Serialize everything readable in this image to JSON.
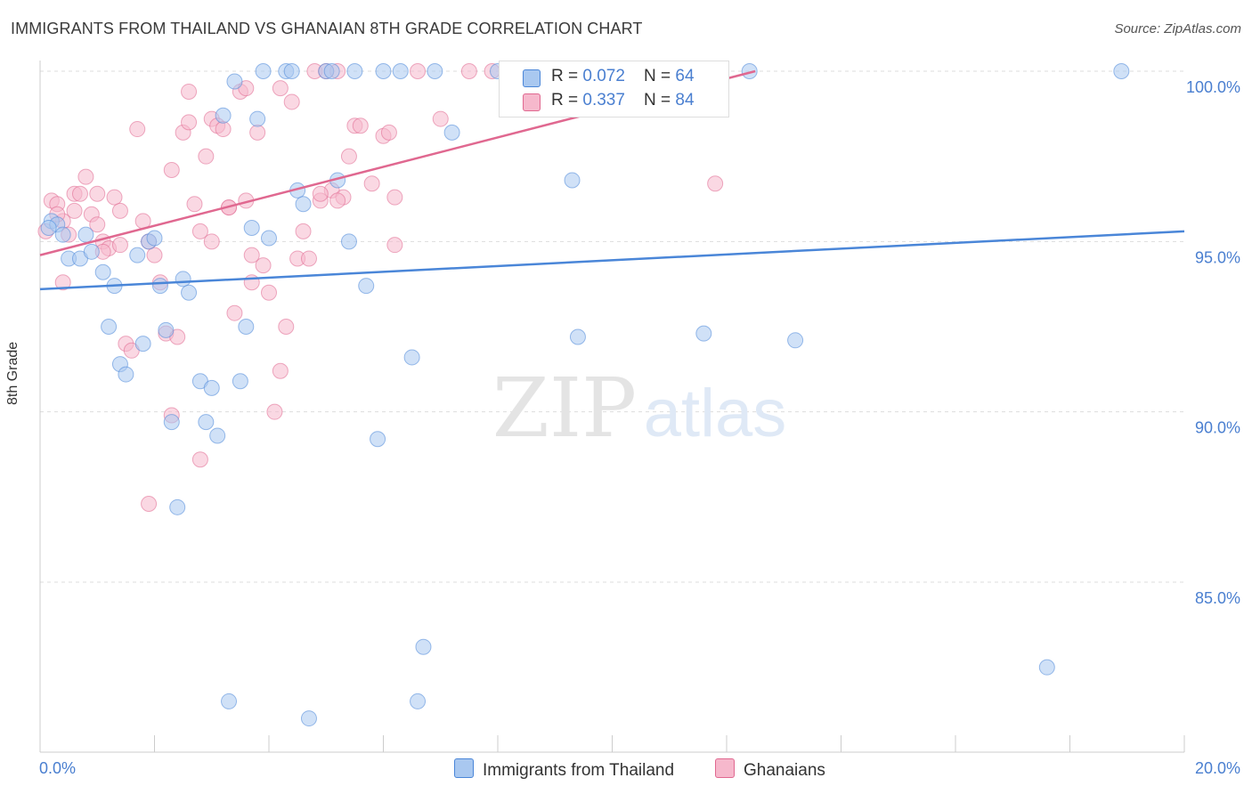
{
  "title": "IMMIGRANTS FROM THAILAND VS GHANAIAN 8TH GRADE CORRELATION CHART",
  "source": "Source: ZipAtlas.com",
  "watermark": {
    "zip": "ZIP",
    "atlas": "atlas"
  },
  "legend": {
    "rows": [
      {
        "r_label": "R = ",
        "r_value": "0.072",
        "n_label": "N = ",
        "n_value": "64",
        "color": "#a9c8f0"
      },
      {
        "r_label": "R = ",
        "r_value": "0.337",
        "n_label": "N = ",
        "n_value": "84",
        "color": "#f6b8cc"
      }
    ]
  },
  "bottom_legend": [
    {
      "label": "Immigrants from Thailand",
      "color": "#a9c8f0"
    },
    {
      "label": "Ghanaians",
      "color": "#f6b8cc"
    }
  ],
  "chart_data": {
    "type": "scatter",
    "title": "IMMIGRANTS FROM THAILAND VS GHANAIAN 8TH GRADE CORRELATION CHART",
    "xlabel": "",
    "ylabel": "8th Grade",
    "xlim": [
      0,
      20
    ],
    "ylim": [
      80.5,
      100.5
    ],
    "x_tick_labels": [
      "0.0%",
      "20.0%"
    ],
    "y_ticks": [
      100,
      95,
      90,
      85
    ],
    "y_tick_labels": [
      "100.0%",
      "95.0%",
      "90.0%",
      "85.0%"
    ],
    "grid": true,
    "legend_position": "top-center",
    "series": [
      {
        "name": "Immigrants from Thailand",
        "color": "#4a86d8",
        "fill": "#a9c8f0",
        "trend": {
          "x": [
            0,
            20
          ],
          "y": [
            93.6,
            95.3
          ]
        },
        "points": [
          [
            0.2,
            95.6
          ],
          [
            0.3,
            95.5
          ],
          [
            0.4,
            95.2
          ],
          [
            0.5,
            94.5
          ],
          [
            0.7,
            94.5
          ],
          [
            0.8,
            95.2
          ],
          [
            0.9,
            94.7
          ],
          [
            1.1,
            94.1
          ],
          [
            1.3,
            93.7
          ],
          [
            1.2,
            92.5
          ],
          [
            1.4,
            91.4
          ],
          [
            1.5,
            91.1
          ],
          [
            1.7,
            94.6
          ],
          [
            1.8,
            92.0
          ],
          [
            1.9,
            95.0
          ],
          [
            2.0,
            95.1
          ],
          [
            2.1,
            93.7
          ],
          [
            2.2,
            92.4
          ],
          [
            2.3,
            89.7
          ],
          [
            2.4,
            87.2
          ],
          [
            2.5,
            93.9
          ],
          [
            2.6,
            93.5
          ],
          [
            2.8,
            90.9
          ],
          [
            2.9,
            89.7
          ],
          [
            3.0,
            90.7
          ],
          [
            3.1,
            89.3
          ],
          [
            3.2,
            98.7
          ],
          [
            3.3,
            81.5
          ],
          [
            3.4,
            99.7
          ],
          [
            3.5,
            90.9
          ],
          [
            3.6,
            92.5
          ],
          [
            3.7,
            95.4
          ],
          [
            3.8,
            98.6
          ],
          [
            3.9,
            100.0
          ],
          [
            4.0,
            95.1
          ],
          [
            4.3,
            100.0
          ],
          [
            4.4,
            100.0
          ],
          [
            4.5,
            96.5
          ],
          [
            4.6,
            96.1
          ],
          [
            4.7,
            81.0
          ],
          [
            5.0,
            100.0
          ],
          [
            5.1,
            100.0
          ],
          [
            5.2,
            96.8
          ],
          [
            5.4,
            95.0
          ],
          [
            5.5,
            100.0
          ],
          [
            5.7,
            93.7
          ],
          [
            5.9,
            89.2
          ],
          [
            6.0,
            100.0
          ],
          [
            6.3,
            100.0
          ],
          [
            6.5,
            91.6
          ],
          [
            6.6,
            81.5
          ],
          [
            6.7,
            83.1
          ],
          [
            6.9,
            100.0
          ],
          [
            7.2,
            98.2
          ],
          [
            8.0,
            100.0
          ],
          [
            9.3,
            96.8
          ],
          [
            9.4,
            92.2
          ],
          [
            11.2,
            100.0
          ],
          [
            11.6,
            92.3
          ],
          [
            12.4,
            100.0
          ],
          [
            13.2,
            92.1
          ],
          [
            17.6,
            82.5
          ],
          [
            18.9,
            100.0
          ],
          [
            0.15,
            95.4
          ]
        ]
      },
      {
        "name": "Ghanaians",
        "color": "#e06890",
        "fill": "#f6b8cc",
        "trend": {
          "x": [
            0,
            12.5
          ],
          "y": [
            94.6,
            100.0
          ]
        },
        "points": [
          [
            0.1,
            95.3
          ],
          [
            0.2,
            96.2
          ],
          [
            0.3,
            96.1
          ],
          [
            0.4,
            95.6
          ],
          [
            0.4,
            93.8
          ],
          [
            0.5,
            95.2
          ],
          [
            0.6,
            96.4
          ],
          [
            0.7,
            96.4
          ],
          [
            0.8,
            96.9
          ],
          [
            0.9,
            95.8
          ],
          [
            1.0,
            96.4
          ],
          [
            1.1,
            95.0
          ],
          [
            1.2,
            94.8
          ],
          [
            1.3,
            96.3
          ],
          [
            1.4,
            94.9
          ],
          [
            1.5,
            92.0
          ],
          [
            1.6,
            91.8
          ],
          [
            1.7,
            98.3
          ],
          [
            1.8,
            95.6
          ],
          [
            1.9,
            95.0
          ],
          [
            2.0,
            94.6
          ],
          [
            2.1,
            93.8
          ],
          [
            2.2,
            92.3
          ],
          [
            2.3,
            89.9
          ],
          [
            2.4,
            92.2
          ],
          [
            2.5,
            98.2
          ],
          [
            2.6,
            99.4
          ],
          [
            2.7,
            96.1
          ],
          [
            2.8,
            95.3
          ],
          [
            2.9,
            97.5
          ],
          [
            3.0,
            98.6
          ],
          [
            3.1,
            98.4
          ],
          [
            3.2,
            98.3
          ],
          [
            3.3,
            96.0
          ],
          [
            3.4,
            92.9
          ],
          [
            3.5,
            99.4
          ],
          [
            3.6,
            96.2
          ],
          [
            3.7,
            93.8
          ],
          [
            3.8,
            98.2
          ],
          [
            3.9,
            94.3
          ],
          [
            4.0,
            93.5
          ],
          [
            4.1,
            90.0
          ],
          [
            4.2,
            91.2
          ],
          [
            4.3,
            92.5
          ],
          [
            4.4,
            99.1
          ],
          [
            4.5,
            94.5
          ],
          [
            4.6,
            95.3
          ],
          [
            4.7,
            94.5
          ],
          [
            4.8,
            100.0
          ],
          [
            4.9,
            96.2
          ],
          [
            5.0,
            100.0
          ],
          [
            5.1,
            96.5
          ],
          [
            5.2,
            100.0
          ],
          [
            5.3,
            96.3
          ],
          [
            5.5,
            98.4
          ],
          [
            5.6,
            98.4
          ],
          [
            5.8,
            96.7
          ],
          [
            6.0,
            98.1
          ],
          [
            6.1,
            98.2
          ],
          [
            6.2,
            94.9
          ],
          [
            6.6,
            100.0
          ],
          [
            7.0,
            98.6
          ],
          [
            7.5,
            100.0
          ],
          [
            7.9,
            100.0
          ],
          [
            8.8,
            100.0
          ],
          [
            11.8,
            96.7
          ],
          [
            1.0,
            95.5
          ],
          [
            2.8,
            88.6
          ],
          [
            1.9,
            87.3
          ],
          [
            3.6,
            99.5
          ],
          [
            2.6,
            98.5
          ],
          [
            3.3,
            96.0
          ],
          [
            4.2,
            99.5
          ],
          [
            5.2,
            96.2
          ],
          [
            0.6,
            95.9
          ],
          [
            1.4,
            95.9
          ],
          [
            2.3,
            97.1
          ],
          [
            3.0,
            95.0
          ],
          [
            3.7,
            94.6
          ],
          [
            4.9,
            96.4
          ],
          [
            5.4,
            97.5
          ],
          [
            6.2,
            96.3
          ],
          [
            0.3,
            95.8
          ],
          [
            1.1,
            94.7
          ]
        ]
      }
    ]
  }
}
